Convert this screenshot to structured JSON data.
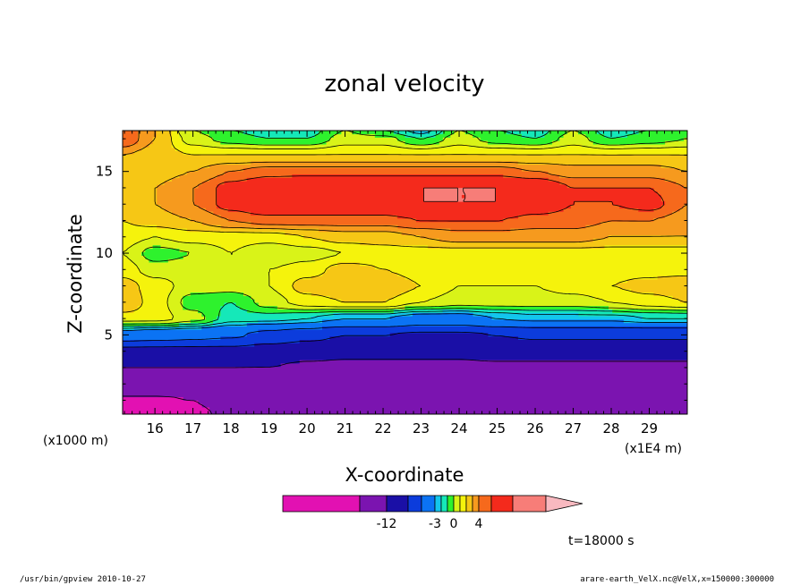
{
  "chart_data": {
    "type": "heatmap",
    "title": "zonal velocity",
    "xlabel": "X-coordinate",
    "ylabel": "Z-coordinate",
    "x_unit_left": "(x1000 m)",
    "x_unit_right": "(x1E4 m)",
    "xlim": [
      15.15,
      30
    ],
    "ylim": [
      0.15,
      17.5
    ],
    "x_ticks": [
      16,
      17,
      18,
      19,
      20,
      21,
      22,
      23,
      24,
      25,
      26,
      27,
      28,
      29
    ],
    "y_ticks": [
      5,
      10,
      15
    ],
    "contour_levels": [
      -15,
      -12,
      -9,
      -6,
      -3,
      -2,
      -1,
      0,
      1,
      2,
      3,
      4,
      5,
      7,
      9
    ],
    "colorbar": {
      "labels": [
        {
          "value": -12,
          "text": "-12"
        },
        {
          "value": -3,
          "text": "-3"
        },
        {
          "value": 0,
          "text": "0"
        },
        {
          "value": 4,
          "text": "4"
        }
      ],
      "colors": [
        "#e211b2",
        "#7b14b0",
        "#1a0fa6",
        "#0c3cdc",
        "#0b73f4",
        "#13c6ec",
        "#15e8b9",
        "#2ef22d",
        "#d9f318",
        "#f5f30c",
        "#f6c715",
        "#f69a1e",
        "#f6691c",
        "#f42a1c",
        "#f77d78",
        "#f8b9c0"
      ]
    },
    "field": {
      "x": [
        15.15,
        16,
        17,
        18,
        19,
        20,
        21,
        22,
        23,
        24,
        25,
        26,
        27,
        28,
        29,
        30
      ],
      "z": [
        0.15,
        1,
        2,
        3,
        4,
        5,
        6,
        7,
        8,
        9,
        10,
        11,
        12,
        13,
        14,
        15,
        16,
        17,
        17.5
      ],
      "u": [
        [
          -16,
          -16,
          -15.5,
          -14.5,
          -14,
          -14,
          -14,
          -14,
          -14,
          -14,
          -14,
          -14,
          -14,
          -14,
          -14,
          -14
        ],
        [
          -15.5,
          -15.5,
          -15,
          -14,
          -13.5,
          -13.5,
          -13.5,
          -13.5,
          -13.5,
          -13.5,
          -13.5,
          -13.5,
          -13.5,
          -13.5,
          -13.5,
          -13.5
        ],
        [
          -12.5,
          -12.5,
          -12.5,
          -12.5,
          -13,
          -13,
          -13,
          -13,
          -13,
          -13,
          -13,
          -13,
          -13,
          -13,
          -13,
          -13
        ],
        [
          -12,
          -12,
          -12,
          -12,
          -12,
          -12.5,
          -12.5,
          -12.5,
          -12.5,
          -12.5,
          -12.5,
          -12.5,
          -12.5,
          -12.5,
          -12.5,
          -12.5
        ],
        [
          -10,
          -10,
          -10,
          -10,
          -10.5,
          -11,
          -11.5,
          -11.5,
          -11.5,
          -11.5,
          -11,
          -11,
          -11,
          -11,
          -11,
          -11
        ],
        [
          -4,
          -4.5,
          -5,
          -5.5,
          -7,
          -8,
          -9,
          -9,
          -9.5,
          -9.5,
          -9,
          -8.5,
          -8.5,
          -8.5,
          -8.5,
          -8.5
        ],
        [
          1.5,
          1.5,
          0.5,
          -1.5,
          -1.5,
          -2,
          -3,
          -3,
          -4,
          -4,
          -3,
          -2.5,
          -2.5,
          -2.5,
          -2,
          -2
        ],
        [
          3,
          1.5,
          -0.5,
          -1,
          0.5,
          1.5,
          2,
          2,
          1,
          0.5,
          0.5,
          0.5,
          0.5,
          1,
          1.5,
          2
        ],
        [
          2.5,
          1.5,
          0.5,
          0.5,
          1,
          2.5,
          3,
          3,
          2,
          1,
          1,
          1,
          1.5,
          2,
          2.5,
          3
        ],
        [
          1.5,
          0.5,
          0.5,
          1,
          1,
          1.5,
          2.5,
          2,
          1.5,
          1.5,
          1.5,
          1.5,
          1.5,
          1.5,
          1.5,
          1.5
        ],
        [
          1,
          -0.5,
          0,
          1,
          0,
          0.5,
          1,
          1.5,
          1.5,
          1.5,
          1.5,
          1.5,
          1.5,
          1.5,
          1.5,
          1.5
        ],
        [
          1.5,
          1,
          1.5,
          1.5,
          1.5,
          2,
          2.5,
          2.5,
          3,
          3.5,
          3.5,
          3.5,
          3.5,
          3,
          3,
          3
        ],
        [
          2,
          2.5,
          3,
          4,
          4.5,
          4.5,
          4.5,
          4.5,
          5,
          5,
          5,
          4.5,
          4.5,
          4,
          4,
          3.5
        ],
        [
          2.5,
          3,
          4,
          5.5,
          6.5,
          6.5,
          6.5,
          6.5,
          7,
          7,
          7,
          6,
          5,
          5,
          5.5,
          4
        ],
        [
          2.5,
          3,
          4,
          5.5,
          6.5,
          7,
          7,
          7,
          7,
          7,
          7,
          6.5,
          5,
          5,
          5,
          4
        ],
        [
          2,
          2.5,
          3,
          4,
          4.5,
          4.5,
          4.5,
          4.5,
          4.5,
          4.5,
          4.5,
          4,
          3.5,
          3.5,
          3.5,
          3
        ],
        [
          3,
          2.5,
          2,
          2,
          2,
          2,
          2,
          2,
          2,
          2,
          2,
          2,
          2,
          2,
          2,
          2
        ],
        [
          5,
          3,
          0.5,
          -0.5,
          -1,
          -1,
          0.5,
          0.5,
          -1,
          0.5,
          -0.5,
          -1,
          0.5,
          -1,
          -0.5,
          0
        ],
        [
          5,
          3,
          0,
          -1,
          -1.5,
          -1.5,
          0,
          -1,
          -2.5,
          0,
          -1,
          -1.5,
          0,
          -1.5,
          -1,
          -0.5
        ]
      ]
    }
  },
  "footer": {
    "left": "/usr/bin/gpview  2010-10-27",
    "right": "arare-earth_VelX.nc@VelX,x=150000:300000"
  },
  "annotation": {
    "time": "t=18000 s"
  }
}
